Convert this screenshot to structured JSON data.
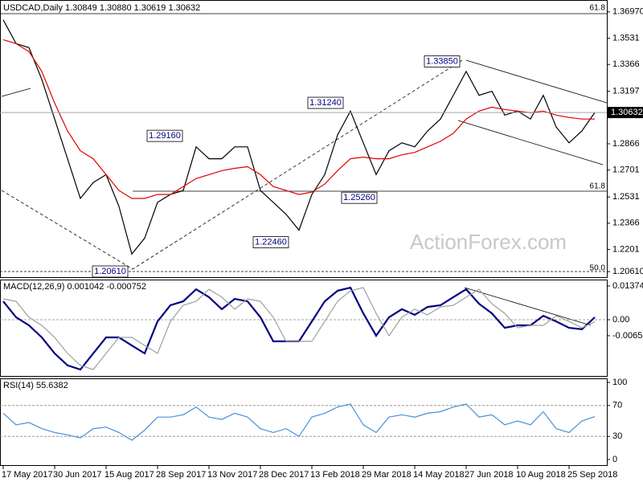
{
  "chart_data": [
    {
      "type": "line",
      "title": "USDCAD,Daily  1.30849 1.30880 1.30619 1.30632",
      "watermark": "ActionForex.com",
      "ylim": [
        1.2026,
        1.3772
      ],
      "yticks": [
        {
          "value": 1.3697,
          "label": "1.36970"
        },
        1.3531,
        1.3366,
        1.3197,
        1.2866,
        1.2701,
        1.2531,
        1.2366,
        1.2201,
        {
          "value": 1.2061,
          "label": "1.20610"
        }
      ],
      "last_price": {
        "value": 1.30632,
        "label": "1.30632"
      },
      "annotations": [
        {
          "value": 1.3385,
          "label": "1.33850"
        },
        {
          "value": 1.3124,
          "label": "1.31240"
        },
        {
          "value": 1.2916,
          "label": "1.29160"
        },
        {
          "value": 1.2246,
          "label": "1.22460"
        },
        {
          "value": 1.2526,
          "label": "1.25260"
        },
        {
          "value": 1.2061,
          "label": "1.20610"
        }
      ],
      "fib_labels": [
        "61.8",
        "61.8",
        "50.0"
      ],
      "series": [
        {
          "name": "USDCAD",
          "color": "#000000",
          "values": [
            1.3647,
            1.3497,
            1.3472,
            1.3272,
            1.3022,
            1.2772,
            1.2522,
            1.2622,
            1.2672,
            1.2472,
            1.2172,
            1.2272,
            1.2497,
            1.2547,
            1.2572,
            1.2847,
            1.2772,
            1.2772,
            1.2847,
            1.2847,
            1.2572,
            1.2497,
            1.2422,
            1.2322,
            1.2547,
            1.2672,
            1.2922,
            1.3072,
            1.2872,
            1.2672,
            1.2822,
            1.2872,
            1.2847,
            1.2947,
            1.3022,
            1.3172,
            1.3322,
            1.3172,
            1.3197,
            1.3047,
            1.3072,
            1.3022,
            1.3172,
            1.2972,
            1.2872,
            1.2947,
            1.3063
          ]
        },
        {
          "name": "MA",
          "color": "#e00000",
          "values": [
            1.3522,
            1.3497,
            1.3447,
            1.3322,
            1.3122,
            1.2947,
            1.2822,
            1.2772,
            1.2672,
            1.2572,
            1.2522,
            1.2522,
            1.2547,
            1.2547,
            1.2597,
            1.2647,
            1.2672,
            1.2697,
            1.2712,
            1.2722,
            1.2672,
            1.2597,
            1.2572,
            1.2547,
            1.2562,
            1.2612,
            1.2697,
            1.2772,
            1.2782,
            1.2772,
            1.2772,
            1.2797,
            1.2812,
            1.2847,
            1.2882,
            1.2932,
            1.3022,
            1.3072,
            1.3097,
            1.3082,
            1.3072,
            1.3062,
            1.3072,
            1.3047,
            1.3032,
            1.3022,
            1.3022
          ]
        }
      ]
    },
    {
      "type": "line",
      "title": "MACD(12,26,9) 0.001042 -0.000752",
      "ylim": [
        -0.02291,
        0.01571
      ],
      "yticks": [
        0.013746,
        {
          "value": 0,
          "label": "0.00"
        },
        -0.006524
      ],
      "levels": [
        0
      ],
      "series": [
        {
          "name": "MACD",
          "color": "#000080",
          "values": [
            0.0075,
            0.001,
            -0.0023,
            -0.0072,
            -0.0137,
            -0.0186,
            -0.0203,
            -0.0137,
            -0.0072,
            -0.0072,
            -0.0105,
            -0.0137,
            -0.0007,
            0.0059,
            0.0075,
            0.0124,
            0.0092,
            0.0043,
            0.0085,
            0.0075,
            0.001,
            -0.0088,
            -0.0088,
            -0.0088,
            -0.0007,
            0.0075,
            0.0118,
            0.0131,
            0.0026,
            -0.0065,
            0.001,
            0.0043,
            0.002,
            0.0052,
            0.0059,
            0.0092,
            0.0124,
            0.0065,
            0.0026,
            -0.0033,
            -0.0023,
            -0.0023,
            0.0016,
            -0.0007,
            -0.0033,
            -0.0039,
            0.001
          ]
        },
        {
          "name": "Signal",
          "color": "#a0a0a0",
          "values": [
            0.0085,
            0.0075,
            0.001,
            -0.0023,
            -0.0072,
            -0.0137,
            -0.0186,
            -0.0203,
            -0.0137,
            -0.0072,
            -0.0072,
            -0.0105,
            -0.0137,
            -0.0007,
            0.0059,
            0.0075,
            0.0124,
            0.0092,
            0.0043,
            0.0085,
            0.0075,
            0.001,
            -0.0088,
            -0.0088,
            -0.0088,
            -0.0007,
            0.0075,
            0.0118,
            0.0131,
            0.0026,
            -0.0065,
            0.001,
            0.0043,
            0.002,
            0.0052,
            0.0059,
            0.0092,
            0.0124,
            0.0065,
            0.0026,
            -0.0033,
            -0.0023,
            -0.0023,
            0.0016,
            -0.0007,
            -0.0033,
            -0.0008
          ]
        }
      ]
    },
    {
      "type": "line",
      "title": "RSI(14) 55.6382",
      "ylim": [
        0,
        100
      ],
      "yticks": [
        100,
        70,
        30,
        0
      ],
      "levels": [
        70,
        30
      ],
      "categories": [
        "17 May 2017",
        null,
        null,
        null,
        "30 Jun 2017",
        null,
        null,
        null,
        "15 Aug 2017",
        null,
        null,
        null,
        "28 Sep 2017",
        null,
        null,
        null,
        "13 Nov 2017",
        null,
        null,
        null,
        "28 Dec 2017",
        null,
        null,
        null,
        "13 Feb 2018",
        null,
        null,
        null,
        "29 Mar 2018",
        null,
        null,
        null,
        "14 May 2018",
        null,
        null,
        null,
        "27 Jun 2018",
        null,
        null,
        null,
        "10 Aug 2018",
        null,
        null,
        null,
        "25 Sep 2018",
        null,
        null
      ],
      "series": [
        {
          "name": "RSI",
          "color": "#4a90d9",
          "values": [
            60,
            45,
            48,
            40,
            35,
            32,
            28,
            40,
            42,
            35,
            25,
            38,
            55,
            55,
            58,
            68,
            55,
            52,
            60,
            55,
            40,
            35,
            40,
            30,
            55,
            60,
            68,
            72,
            45,
            35,
            55,
            58,
            55,
            60,
            62,
            68,
            72,
            55,
            58,
            45,
            50,
            45,
            62,
            40,
            35,
            50,
            55.6
          ]
        }
      ]
    }
  ]
}
